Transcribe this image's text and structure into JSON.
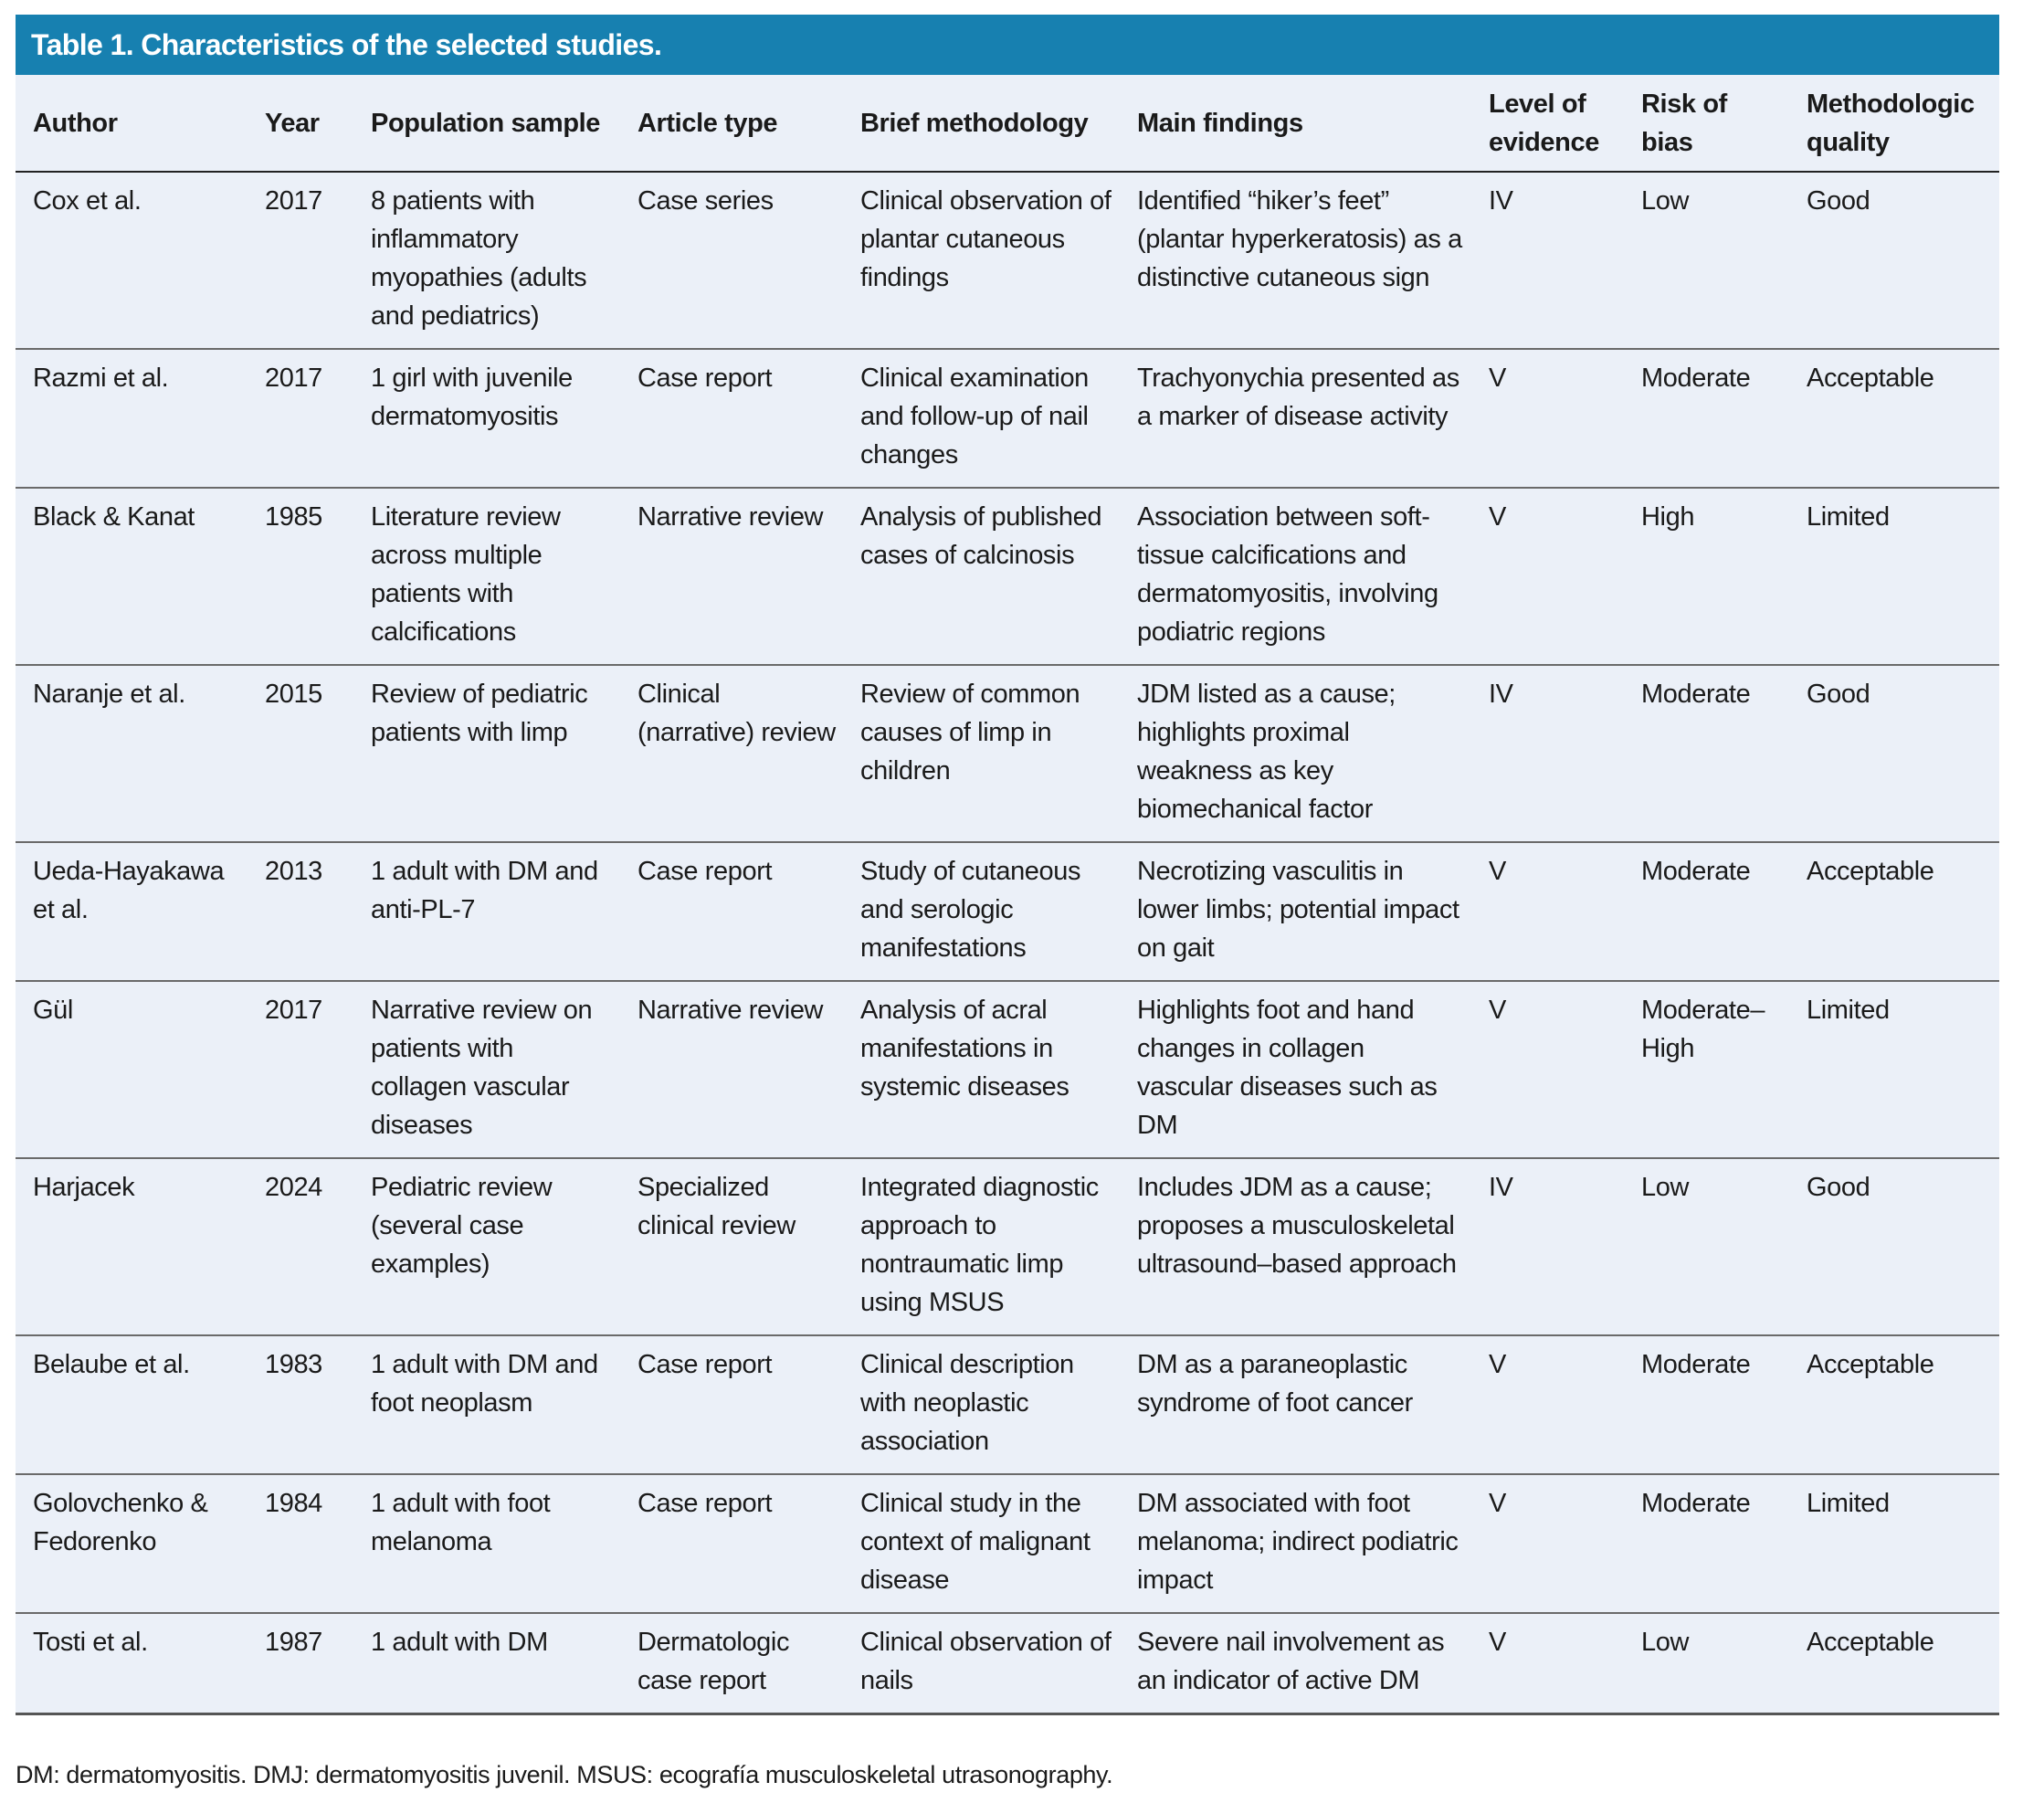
{
  "title": "Table 1. Characteristics of the selected studies.",
  "columns": [
    "Author",
    "Year",
    "Population sample",
    "Article type",
    "Brief methodology",
    "Main findings",
    "Level of evidence",
    "Risk of bias",
    "Methodologic quality"
  ],
  "rows": [
    [
      "Cox et al.",
      "2017",
      "8 patients with inflammatory myopathies (adults and pediatrics)",
      "Case series",
      "Clinical observation of plantar cutaneous findings",
      "Identified “hiker’s feet” (plantar hyperkeratosis) as a distinctive cutaneous sign",
      "IV",
      "Low",
      "Good"
    ],
    [
      "Razmi et al.",
      "2017",
      "1 girl with juvenile dermatomyositis",
      "Case report",
      "Clinical examination and follow-up of nail changes",
      "Trachyonychia presented as a marker of disease activity",
      "V",
      "Moderate",
      "Acceptable"
    ],
    [
      "Black & Kanat",
      "1985",
      "Literature review across multiple patients with calcifications",
      "Narrative review",
      "Analysis of published cases of calcinosis",
      "Association between soft-tissue calcifications and dermatomyositis, involving podiatric regions",
      "V",
      "High",
      "Limited"
    ],
    [
      "Naranje et al.",
      "2015",
      "Review of pediatric patients with limp",
      "Clinical (narrative) review",
      "Review of common causes of limp in children",
      "JDM listed as a cause; highlights proximal weakness as key biomechanical factor",
      "IV",
      "Moderate",
      "Good"
    ],
    [
      "Ueda-Hayakawa et al.",
      "2013",
      "1 adult with DM and anti-PL-7",
      "Case report",
      "Study of cutaneous and serologic manifestations",
      "Necrotizing vasculitis in lower limbs; potential impact on gait",
      "V",
      "Moderate",
      "Acceptable"
    ],
    [
      "Gül",
      "2017",
      "Narrative review on patients with collagen vascular diseases",
      "Narrative review",
      "Analysis of acral manifestations in systemic diseases",
      "Highlights foot and hand changes in collagen vascular diseases such as DM",
      "V",
      "Moderate–High",
      "Limited"
    ],
    [
      "Harjacek",
      "2024",
      "Pediatric review (several case examples)",
      "Specialized clinical review",
      "Integrated diagnostic approach to nontraumatic limp using MSUS",
      "Includes JDM as a cause; proposes a musculoskeletal ultrasound–based approach",
      "IV",
      "Low",
      "Good"
    ],
    [
      "Belaube et al.",
      "1983",
      "1 adult with DM and foot neoplasm",
      "Case report",
      "Clinical description with neoplastic association",
      "DM as a paraneoplastic syndrome of foot cancer",
      "V",
      "Moderate",
      "Acceptable"
    ],
    [
      "Golovchenko & Fedorenko",
      "1984",
      "1 adult with foot melanoma",
      "Case report",
      "Clinical study in the context of malignant disease",
      "DM associated with foot melanoma; indirect podiatric impact",
      "V",
      "Moderate",
      "Limited"
    ],
    [
      "Tosti et al.",
      "1987",
      "1 adult with DM",
      "Dermatologic case report",
      "Clinical observation of nails",
      "Severe nail involvement as an indicator of active DM",
      "V",
      "Low",
      "Acceptable"
    ]
  ],
  "footnote": "DM: dermatomyositis. DMJ: dermatomyositis juvenil. MSUS: ecografía musculoskeletal utrasonography.",
  "colors": {
    "title_bar": "#1780b0",
    "table_bg": "#ebf0f8"
  }
}
